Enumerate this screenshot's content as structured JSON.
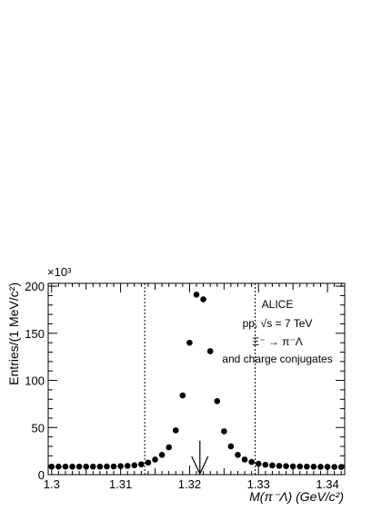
{
  "chart_data": {
    "type": "scatter",
    "xlabel": "M(π⁻Λ) (GeV/c²)",
    "ylabel": "Entries/(1 MeV/c²)",
    "y_multiplier": "×10³",
    "xlim": [
      1.2995,
      1.3425
    ],
    "ylim": [
      0,
      203
    ],
    "x_ticks": [
      "1.3",
      "1.31",
      "1.32",
      "1.33",
      "1.34"
    ],
    "y_ticks": [
      "0",
      "50",
      "100",
      "150",
      "200"
    ],
    "series": [
      {
        "x": [
          1.3,
          1.301,
          1.302,
          1.303,
          1.304,
          1.305,
          1.306,
          1.307,
          1.308,
          1.309,
          1.31,
          1.311,
          1.312,
          1.313,
          1.314,
          1.315,
          1.316,
          1.317,
          1.318,
          1.319,
          1.32,
          1.321,
          1.322,
          1.323,
          1.324,
          1.325,
          1.326,
          1.327,
          1.328,
          1.329,
          1.33,
          1.331,
          1.332,
          1.333,
          1.334,
          1.335,
          1.336,
          1.337,
          1.338,
          1.339,
          1.34,
          1.341,
          1.342
        ],
        "y": [
          8.5,
          8.5,
          8.5,
          8.5,
          8.5,
          8.5,
          8.5,
          8.5,
          8.6,
          8.7,
          9,
          9.3,
          10,
          11,
          12.8,
          16,
          21,
          29,
          47,
          84,
          140,
          191,
          186,
          131,
          78,
          46,
          30,
          21,
          16,
          13.5,
          11.5,
          10.5,
          9.8,
          9.3,
          9,
          8.8,
          8.6,
          8.5,
          8.4,
          8.3,
          8.3,
          8.2,
          8.2
        ]
      }
    ],
    "vertical_lines": [
      1.3135,
      1.3295
    ],
    "arrow_x": 1.3215,
    "annotations": [
      "ALICE",
      "pp, √s = 7 TeV",
      "Ξ⁻ → π⁻Λ",
      "and charge conjugates"
    ]
  }
}
